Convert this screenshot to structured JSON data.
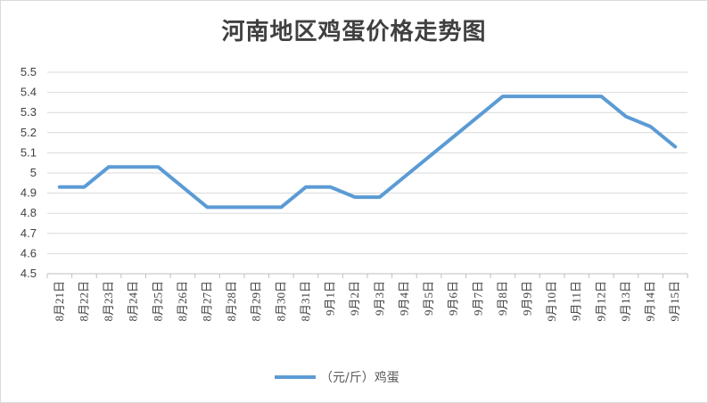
{
  "chart_data": {
    "type": "line",
    "title": "河南地区鸡蛋价格走势图",
    "categories": [
      "8月21日",
      "8月22日",
      "8月23日",
      "8月24日",
      "8月25日",
      "8月26日",
      "8月27日",
      "8月28日",
      "8月29日",
      "8月30日",
      "8月31日",
      "9月1日",
      "9月2日",
      "9月3日",
      "9月4日",
      "9月5日",
      "9月6日",
      "9月7日",
      "9月8日",
      "9月9日",
      "9月10日",
      "9月11日",
      "9月12日",
      "9月13日",
      "9月14日",
      "9月15日"
    ],
    "series": [
      {
        "name": "（元/斤）鸡蛋",
        "color": "#5b9bd5",
        "values": [
          4.93,
          4.93,
          5.03,
          5.03,
          5.03,
          4.93,
          4.83,
          4.83,
          4.83,
          4.83,
          4.93,
          4.93,
          4.88,
          4.88,
          4.98,
          5.08,
          5.18,
          5.28,
          5.38,
          5.38,
          5.38,
          5.38,
          5.38,
          5.28,
          5.23,
          5.13
        ]
      }
    ],
    "ylim": [
      4.5,
      5.5
    ],
    "yticks": [
      "4.5",
      "4.6",
      "4.7",
      "4.8",
      "4.9",
      "5",
      "5.1",
      "5.2",
      "5.3",
      "5.4",
      "5.5"
    ],
    "xlabel": "",
    "ylabel": "",
    "grid": true,
    "legend": "bottom"
  }
}
